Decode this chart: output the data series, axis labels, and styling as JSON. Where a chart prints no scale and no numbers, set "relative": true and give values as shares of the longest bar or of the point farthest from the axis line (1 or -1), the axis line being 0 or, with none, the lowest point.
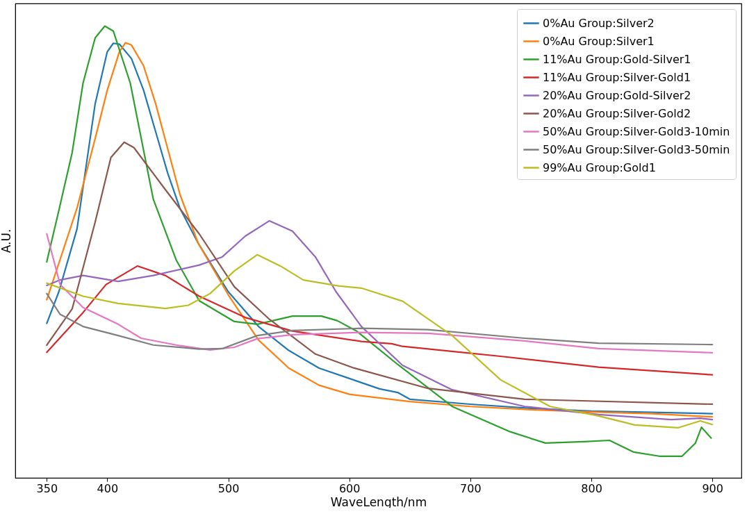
{
  "chart_data": {
    "type": "line",
    "xlabel": "WaveLength/nm",
    "ylabel": "A.U.",
    "relative": true,
    "xlim": [
      324,
      924
    ],
    "xticks": [
      350,
      400,
      500,
      600,
      700,
      800,
      900
    ],
    "grid": false,
    "legend": "top right",
    "line_style": "solid",
    "marker": "none",
    "series": [
      {
        "name": "0%Au Group:Silver2",
        "color": "#1f77b4",
        "x": [
          350,
          360,
          375,
          390,
          400,
          405,
          410,
          420,
          430,
          440,
          450,
          460,
          475,
          500,
          525,
          550,
          575,
          600,
          625,
          640,
          650,
          700,
          750,
          800,
          850,
          900
        ],
        "values": [
          0.342,
          0.412,
          0.551,
          0.828,
          0.943,
          0.962,
          0.96,
          0.928,
          0.858,
          0.766,
          0.674,
          0.597,
          0.52,
          0.412,
          0.335,
          0.282,
          0.243,
          0.22,
          0.197,
          0.189,
          0.174,
          0.163,
          0.154,
          0.148,
          0.145,
          0.142
        ]
      },
      {
        "name": "0%Au Group:Silver1",
        "color": "#ff7f0e",
        "x": [
          350,
          360,
          375,
          390,
          400,
          410,
          415,
          420,
          430,
          440,
          450,
          460,
          475,
          500,
          525,
          550,
          575,
          600,
          650,
          700,
          750,
          800,
          850,
          900
        ],
        "values": [
          0.394,
          0.475,
          0.597,
          0.751,
          0.858,
          0.943,
          0.963,
          0.958,
          0.912,
          0.828,
          0.728,
          0.628,
          0.52,
          0.405,
          0.305,
          0.243,
          0.205,
          0.185,
          0.169,
          0.158,
          0.151,
          0.146,
          0.142,
          0.135
        ]
      },
      {
        "name": "11%Au Group:Gold-Silver1",
        "color": "#2ca02c",
        "x": [
          350,
          360,
          371,
          380,
          390,
          398,
          405,
          419,
          438,
          457,
          476,
          505,
          524,
          553,
          577,
          590,
          606,
          640,
          685,
          733,
          762,
          794,
          815,
          835,
          856,
          875,
          886,
          891,
          899
        ],
        "values": [
          0.478,
          0.592,
          0.72,
          0.874,
          0.974,
          1,
          0.989,
          0.874,
          0.617,
          0.482,
          0.392,
          0.346,
          0.34,
          0.358,
          0.358,
          0.348,
          0.325,
          0.251,
          0.158,
          0.102,
          0.077,
          0.08,
          0.083,
          0.057,
          0.048,
          0.048,
          0.077,
          0.112,
          0.088
        ]
      },
      {
        "name": "11%Au Group:Silver-Gold1",
        "color": "#d62728",
        "x": [
          350,
          380,
          399,
          425,
          448,
          476,
          514,
          553,
          610,
          635,
          644,
          725,
          806,
          900
        ],
        "values": [
          0.278,
          0.366,
          0.428,
          0.469,
          0.448,
          0.402,
          0.355,
          0.325,
          0.302,
          0.297,
          0.291,
          0.269,
          0.245,
          0.228
        ]
      },
      {
        "name": "20%Au Group:Gold-Silver2",
        "color": "#9467bd",
        "x": [
          350,
          361,
          380,
          409,
          438,
          476,
          495,
          514,
          534,
          553,
          572,
          589,
          610,
          644,
          685,
          745,
          806,
          866,
          890,
          900
        ],
        "values": [
          0.426,
          0.438,
          0.448,
          0.435,
          0.448,
          0.471,
          0.489,
          0.535,
          0.569,
          0.546,
          0.489,
          0.412,
          0.335,
          0.249,
          0.195,
          0.158,
          0.14,
          0.129,
          0.132,
          0.129
        ]
      },
      {
        "name": "20%Au Group:Silver-Gold2",
        "color": "#8c564b",
        "x": [
          350,
          371,
          390,
          403,
          414,
          422,
          448,
          476,
          505,
          534,
          572,
          604,
          665,
          745,
          900
        ],
        "values": [
          0.294,
          0.374,
          0.566,
          0.709,
          0.743,
          0.731,
          0.638,
          0.54,
          0.423,
          0.351,
          0.274,
          0.243,
          0.198,
          0.174,
          0.163
        ]
      },
      {
        "name": "50%Au Group:Silver-Gold3-10min",
        "color": "#e377c2",
        "x": [
          350,
          352,
          361,
          380,
          409,
          428,
          457,
          485,
          505,
          524,
          553,
          610,
          665,
          745,
          806,
          900
        ],
        "values": [
          0.54,
          0.52,
          0.428,
          0.377,
          0.34,
          0.309,
          0.294,
          0.283,
          0.289,
          0.308,
          0.317,
          0.322,
          0.32,
          0.303,
          0.286,
          0.277
        ]
      },
      {
        "name": "50%Au Group:Silver-Gold3-50min",
        "color": "#7f7f7f",
        "x": [
          350,
          361,
          380,
          409,
          438,
          476,
          495,
          524,
          553,
          610,
          665,
          745,
          806,
          900
        ],
        "values": [
          0.408,
          0.362,
          0.335,
          0.315,
          0.294,
          0.285,
          0.286,
          0.315,
          0.326,
          0.331,
          0.328,
          0.309,
          0.298,
          0.295
        ]
      },
      {
        "name": "99%Au Group:Gold1",
        "color": "#bcbd22",
        "x": [
          350,
          380,
          409,
          448,
          467,
          485,
          505,
          524,
          543,
          562,
          591,
          610,
          644,
          685,
          725,
          766,
          806,
          836,
          872,
          890,
          900
        ],
        "values": [
          0.431,
          0.402,
          0.386,
          0.375,
          0.382,
          0.408,
          0.458,
          0.494,
          0.469,
          0.438,
          0.425,
          0.42,
          0.391,
          0.315,
          0.217,
          0.158,
          0.137,
          0.117,
          0.111,
          0.126,
          0.118
        ]
      }
    ]
  }
}
